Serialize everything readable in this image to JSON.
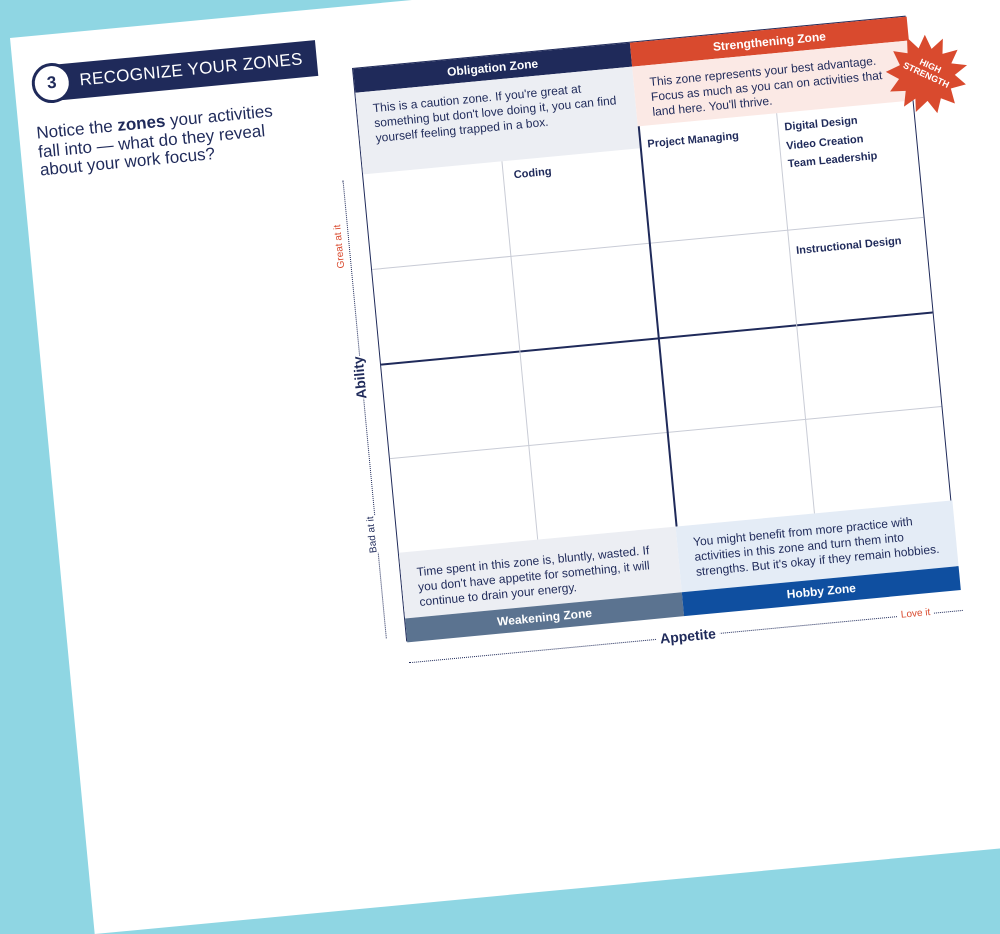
{
  "step": {
    "number": "3",
    "title": "RECOGNIZE YOUR ZONES"
  },
  "intro": {
    "before": "Notice the",
    "bold": "zones",
    "after": "your activities fall into — what do they reveal about your work focus?"
  },
  "zones": {
    "obligation": {
      "title": "Obligation Zone",
      "text": "This is a caution zone. If you're great at something but don't love doing it, you can find yourself feeling trapped in a box."
    },
    "strengthening": {
      "title": "Strengthening Zone",
      "text": "This zone represents your best advantage. Focus as much as you can on activities that land here. You'll thrive.",
      "badge": "HIGH STRENGTH"
    },
    "weakening": {
      "title": "Weakening Zone",
      "text": "Time spent in this zone is, bluntly, wasted. If you don't have appetite for something, it will continue to drain your energy."
    },
    "hobby": {
      "title": "Hobby Zone",
      "text": "You might benefit from more practice with activities in this zone and turn them into strengths. But it's okay if they remain hobbies."
    }
  },
  "axes": {
    "y": {
      "label": "Ability",
      "high": "Great at it",
      "low": "Bad at it"
    },
    "x": {
      "label": "Appetite",
      "high": "Love it"
    }
  },
  "activities": {
    "coding": "Coding",
    "project_managing": "Project Managing",
    "strength_list": [
      "Digital Design",
      "Video Creation",
      "Team Leadership"
    ],
    "instructional_design": "Instructional Design"
  }
}
